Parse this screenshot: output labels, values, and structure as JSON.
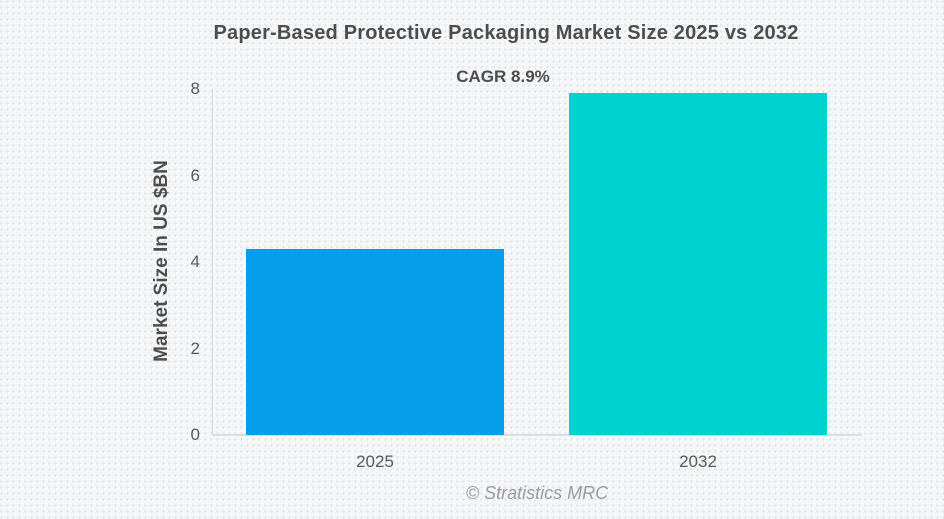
{
  "header": {
    "title": "Paper-Based Protective Packaging Market Size 2025 vs 2032",
    "subtitle": "CAGR 8.9%"
  },
  "footer": {
    "attribution": "© Stratistics MRC"
  },
  "chart_data": {
    "type": "bar",
    "title": "Paper-Based Protective Packaging Market Size 2025 vs 2032",
    "annotation": "CAGR 8.9%",
    "categories": [
      "2025",
      "2032"
    ],
    "values": [
      4.3,
      7.9
    ],
    "xlabel": "",
    "ylabel": "Market Size In US $BN",
    "ylim": [
      0,
      8
    ],
    "yticks": [
      0,
      2,
      4,
      6,
      8
    ],
    "grid": false,
    "legend": false,
    "bar_colors": [
      "#059ee8",
      "#00d2d0"
    ]
  },
  "colors": {
    "bar_2025": "#059ee8",
    "bar_2032": "#00d2d0",
    "title_text": "#4d4d4d",
    "axis_text": "#595959",
    "axis_line": "#d8d8d8",
    "attribution_text": "#9b9b9b",
    "background": "#f5f6f7"
  }
}
